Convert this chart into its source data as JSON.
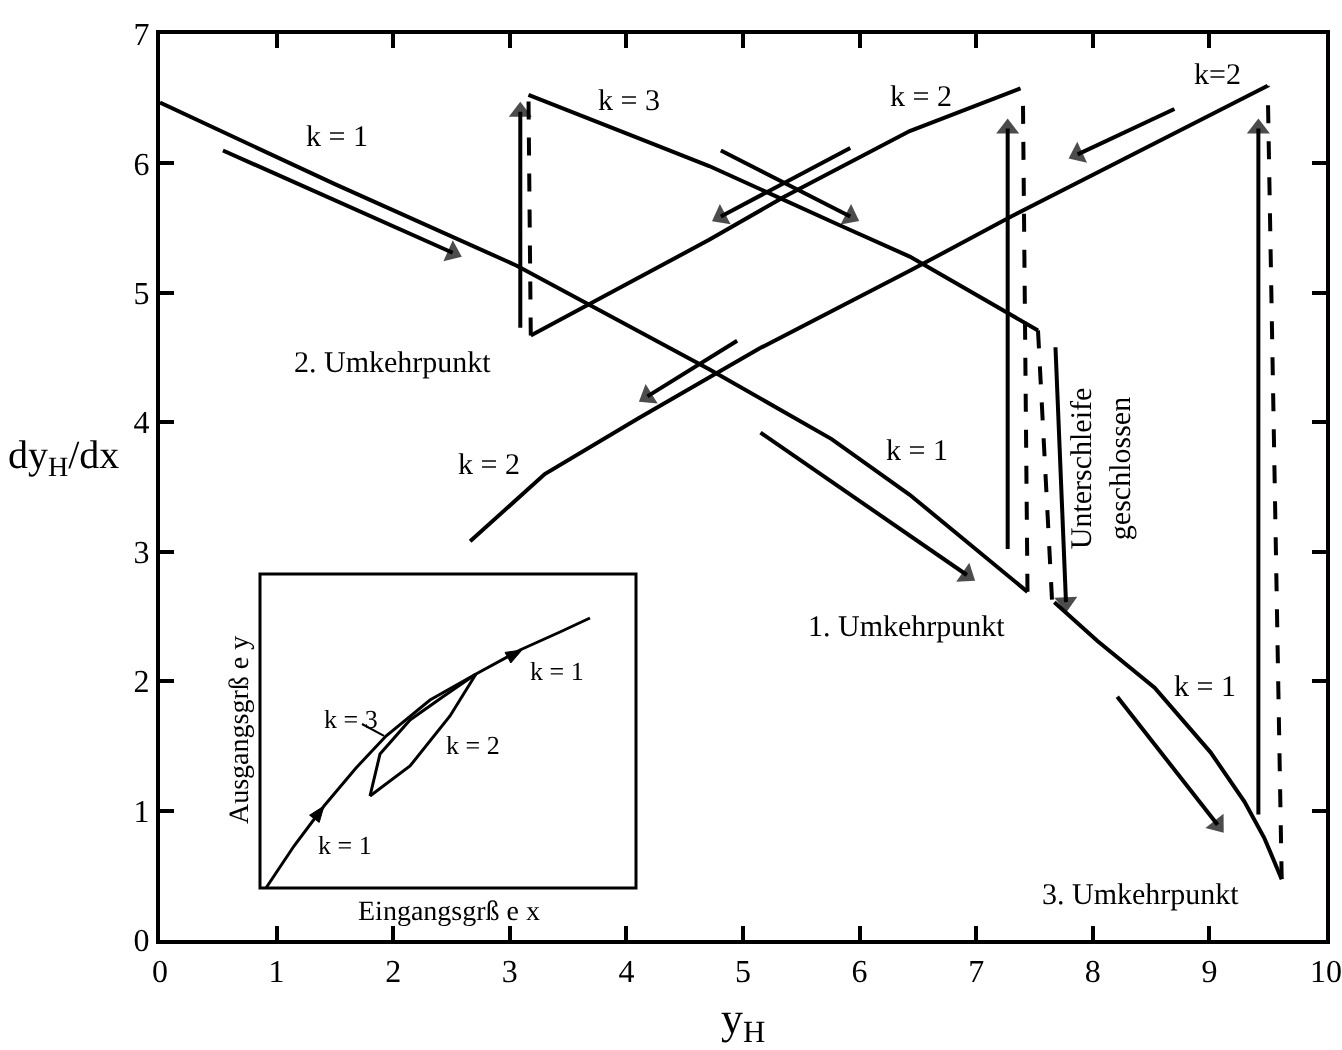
{
  "chart_data": [
    {
      "type": "line",
      "xlabel": "y$_{H}$",
      "ylabel": "dy$_{H}$/dx",
      "xlim": [
        0,
        10
      ],
      "ylim": [
        0,
        7
      ],
      "xticks": [
        0,
        1,
        2,
        3,
        4,
        5,
        6,
        7,
        8,
        9,
        10
      ],
      "yticks": [
        0,
        1,
        2,
        3,
        4,
        5,
        6,
        7
      ],
      "grid": false,
      "annotations": [
        "k = 1",
        "k = 3",
        "k = 2",
        "k=2",
        "2. Umkehrpunkt",
        "k = 2",
        "k = 1",
        "Unterschleife\ngeschlossen",
        "1. Umkehrpunkt",
        "k = 1",
        "3. Umkehrpunkt"
      ],
      "series": [
        {
          "color": "#000000",
          "x": [
            0,
            1.5,
            3.06,
            4.71,
            5.76,
            6.43,
            7.44
          ],
          "values": [
            6.47,
            5.84,
            5.21,
            4.41,
            3.87,
            3.44,
            2.69
          ]
        },
        {
          "color": "#000000",
          "line_style": "dashed",
          "x": [
            7.44,
            7.4
          ],
          "values": [
            2.69,
            6.58
          ]
        },
        {
          "color": "#000000",
          "x": [
            7.38,
            6.43,
            5.35,
            4.71,
            3.18
          ],
          "values": [
            6.58,
            6.25,
            5.74,
            5.41,
            4.67
          ]
        },
        {
          "color": "#000000",
          "line_style": "dashed",
          "x": [
            3.18,
            3.16
          ],
          "values": [
            4.67,
            6.53
          ]
        },
        {
          "color": "#000000",
          "x": [
            3.16,
            4.26,
            4.71,
            5.81,
            6.43,
            7.53
          ],
          "values": [
            6.53,
            6.14,
            5.98,
            5.53,
            5.28,
            4.71
          ]
        },
        {
          "color": "#000000",
          "line_style": "dashed",
          "x": [
            7.53,
            7.65
          ],
          "values": [
            4.71,
            2.63
          ]
        },
        {
          "color": "#000000",
          "x": [
            7.67,
            8.04,
            8.53,
            9.01,
            9.3,
            9.47,
            9.62
          ],
          "values": [
            2.61,
            2.31,
            1.95,
            1.45,
            1.07,
            0.79,
            0.47
          ]
        },
        {
          "color": "#000000",
          "line_style": "dashed",
          "x": [
            9.62,
            9.5
          ],
          "values": [
            0.47,
            6.6
          ]
        },
        {
          "color": "#000000",
          "x": [
            9.5,
            7.3,
            6.43,
            5.14,
            4.1,
            3.3,
            2.66
          ],
          "values": [
            6.6,
            5.59,
            5.17,
            4.57,
            4.03,
            3.6,
            3.08
          ]
        },
        {
          "color": "#000000",
          "marker": "triangle",
          "x": [
            0.54,
            2.51
          ],
          "values": [
            6.1,
            5.31
          ]
        },
        {
          "color": "#000000",
          "marker": "triangle",
          "x": [
            3.09,
            3.09
          ],
          "values": [
            4.73,
            6.4
          ]
        },
        {
          "color": "#000000",
          "marker": "triangle",
          "x": [
            4.81,
            5.92
          ],
          "values": [
            6.1,
            5.59
          ]
        },
        {
          "color": "#000000",
          "marker": "triangle",
          "x": [
            5.92,
            4.81
          ],
          "values": [
            6.12,
            5.59
          ]
        },
        {
          "color": "#000000",
          "marker": "triangle",
          "x": [
            4.95,
            4.18
          ],
          "values": [
            4.63,
            4.2
          ]
        },
        {
          "color": "#000000",
          "marker": "triangle",
          "x": [
            8.7,
            7.87
          ],
          "values": [
            6.42,
            6.07
          ]
        },
        {
          "color": "#000000",
          "marker": "triangle",
          "x": [
            7.27,
            7.27
          ],
          "values": [
            3.02,
            6.27
          ]
        },
        {
          "color": "#000000",
          "marker": "triangle",
          "x": [
            7.68,
            7.77
          ],
          "values": [
            4.58,
            2.61
          ]
        },
        {
          "color": "#000000",
          "marker": "triangle",
          "x": [
            5.15,
            6.92
          ],
          "values": [
            3.92,
            2.82
          ]
        },
        {
          "color": "#000000",
          "marker": "triangle",
          "x": [
            8.21,
            9.07
          ],
          "values": [
            1.88,
            0.89
          ]
        },
        {
          "color": "#000000",
          "marker": "triangle",
          "x": [
            9.42,
            9.42
          ],
          "values": [
            0.97,
            6.27
          ]
        }
      ]
    },
    {
      "type": "other",
      "xlabel": "Eingangsgrß e x",
      "ylabel": "Ausgangsgrß e y",
      "annotations": [
        "k = 1",
        "k = 3",
        "k = 2",
        "k = 1"
      ]
    }
  ]
}
